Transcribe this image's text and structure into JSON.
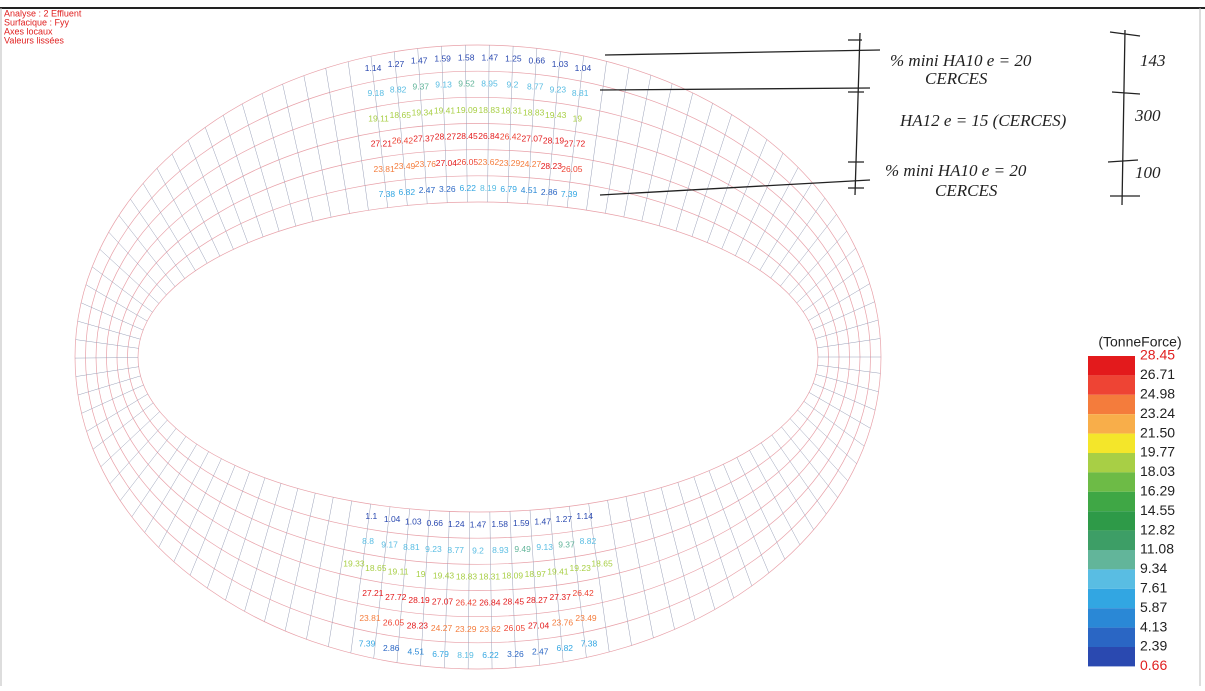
{
  "header": {
    "lines": [
      "Analyse : 2  Effluent",
      "Surfacique : Fyy",
      "Axes locaux",
      "Valeurs lissées"
    ]
  },
  "annotations": [
    {
      "text": "% mini HA10 e = 20",
      "sub": "CERCES",
      "dim": "143"
    },
    {
      "text": "HA12 e = 15 (CERCES)",
      "dim": "300"
    },
    {
      "text": "% mini HA10 e = 20",
      "sub": "CERCES",
      "dim": "100"
    }
  ],
  "mesh": {
    "top_rows": [
      [
        1.14,
        1.27,
        1.47,
        1.59,
        1.58,
        1.47,
        1.25,
        0.66,
        1.03,
        1.04
      ],
      [
        9.18,
        8.82,
        9.37,
        9.13,
        9.52,
        8.95,
        9.2,
        8.77,
        9.23,
        8.81
      ],
      [
        19.11,
        18.65,
        19.34,
        19.41,
        19.09,
        18.83,
        18.31,
        18.83,
        19.43,
        19.0
      ],
      [
        27.21,
        26.42,
        27.37,
        28.27,
        28.45,
        26.84,
        26.42,
        27.07,
        28.19,
        27.72
      ],
      [
        23.81,
        23.49,
        23.76,
        27.04,
        26.05,
        23.62,
        23.29,
        24.27,
        28.23,
        26.05
      ],
      [
        7.38,
        6.82,
        2.47,
        3.26,
        6.22,
        8.19,
        6.79,
        4.51,
        2.86,
        7.39
      ]
    ],
    "bottom_rows": [
      [
        7.39,
        2.86,
        4.51,
        6.79,
        8.19,
        6.22,
        3.26,
        2.47,
        6.82,
        7.38
      ],
      [
        23.81,
        26.05,
        28.23,
        24.27,
        23.29,
        23.62,
        26.05,
        27.04,
        23.76,
        23.49
      ],
      [
        27.21,
        27.72,
        28.19,
        27.07,
        26.42,
        26.84,
        28.45,
        28.27,
        27.37,
        26.42
      ],
      [
        19.33,
        18.65,
        19.11,
        19.0,
        19.43,
        18.83,
        18.31,
        18.09,
        18.97,
        19.41,
        19.23,
        18.65
      ],
      [
        8.8,
        9.17,
        8.81,
        9.23,
        8.77,
        9.2,
        8.93,
        9.49,
        9.13,
        9.37,
        8.82
      ],
      [
        1.1,
        1.04,
        1.03,
        0.66,
        1.24,
        1.47,
        1.58,
        1.59,
        1.47,
        1.27,
        1.14
      ]
    ]
  },
  "legend": {
    "title": "(TonneForce)",
    "levels": [
      28.45,
      26.71,
      24.98,
      23.24,
      21.5,
      19.77,
      18.03,
      16.29,
      14.55,
      12.82,
      11.08,
      9.34,
      7.61,
      5.87,
      4.13,
      2.39,
      0.66
    ],
    "level_labels": [
      "28.45",
      "26.71",
      "24.98",
      "23.24",
      "21.50",
      "19.77",
      "18.03",
      "16.29",
      "14.55",
      "12.82",
      "11.08",
      "9.34",
      "7.61",
      "5.87",
      "4.13",
      "2.39",
      "0.66"
    ],
    "colors": [
      "#e31a1c",
      "#ee4434",
      "#f47c3c",
      "#f8ae4a",
      "#f4e62a",
      "#a8cf45",
      "#6dbb46",
      "#3fa745",
      "#2e9a48",
      "#3d9e66",
      "#62b59a",
      "#59bde3",
      "#32a6e2",
      "#2a88d6",
      "#2a66c4",
      "#2a49b0"
    ]
  }
}
